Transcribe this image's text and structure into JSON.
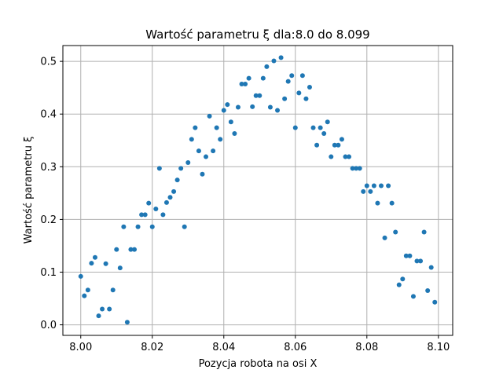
{
  "chart_data": {
    "type": "scatter",
    "title": "Wartość parametru ξ dla:8.0 do 8.099",
    "xlabel": "Pozycja robota na osi X",
    "ylabel": "Wartość parametru ξ",
    "xlim": [
      7.995,
      8.104
    ],
    "ylim": [
      -0.02,
      0.53
    ],
    "xticks": [
      8.0,
      8.02,
      8.04,
      8.06,
      8.08,
      8.1
    ],
    "xtick_labels": [
      "8.00",
      "8.02",
      "8.04",
      "8.06",
      "8.08",
      "8.10"
    ],
    "yticks": [
      0.0,
      0.1,
      0.2,
      0.3,
      0.4,
      0.5
    ],
    "ytick_labels": [
      "0.0",
      "0.1",
      "0.2",
      "0.3",
      "0.4",
      "0.5"
    ],
    "grid": true,
    "marker_color": "#1f77b4",
    "series": [
      {
        "x": [
          8.0,
          8.001,
          8.002,
          8.003,
          8.004,
          8.005,
          8.006,
          8.007,
          8.008,
          8.009,
          8.01,
          8.011,
          8.012,
          8.013,
          8.014,
          8.015,
          8.016,
          8.017,
          8.018,
          8.019,
          8.02,
          8.021,
          8.022,
          8.023,
          8.024,
          8.025,
          8.026,
          8.027,
          8.028,
          8.029,
          8.03,
          8.031,
          8.032,
          8.033,
          8.034,
          8.035,
          8.036,
          8.037,
          8.038,
          8.039,
          8.04,
          8.041,
          8.042,
          8.043,
          8.044,
          8.045,
          8.046,
          8.047,
          8.048,
          8.049,
          8.05,
          8.051,
          8.052,
          8.053,
          8.054,
          8.055,
          8.056,
          8.057,
          8.058,
          8.059,
          8.06,
          8.061,
          8.062,
          8.063,
          8.064,
          8.065,
          8.066,
          8.067,
          8.068,
          8.069,
          8.07,
          8.071,
          8.072,
          8.073,
          8.074,
          8.075,
          8.076,
          8.077,
          8.078,
          8.079,
          8.08,
          8.081,
          8.082,
          8.083,
          8.084,
          8.085,
          8.086,
          8.087,
          8.088,
          8.089,
          8.09,
          8.091,
          8.092,
          8.093,
          8.094,
          8.095,
          8.096,
          8.097,
          8.098,
          8.099
        ],
        "y": [
          0.092,
          0.055,
          0.066,
          0.117,
          0.128,
          0.017,
          0.03,
          0.116,
          0.03,
          0.066,
          0.143,
          0.108,
          0.186,
          0.005,
          0.143,
          0.143,
          0.186,
          0.209,
          0.209,
          0.231,
          0.186,
          0.22,
          0.297,
          0.209,
          0.232,
          0.242,
          0.253,
          0.275,
          0.297,
          0.186,
          0.308,
          0.352,
          0.374,
          0.33,
          0.286,
          0.319,
          0.396,
          0.33,
          0.374,
          0.352,
          0.407,
          0.418,
          0.385,
          0.363,
          0.413,
          0.457,
          0.457,
          0.468,
          0.414,
          0.435,
          0.435,
          0.468,
          0.49,
          0.413,
          0.501,
          0.407,
          0.507,
          0.429,
          0.462,
          0.473,
          0.374,
          0.44,
          0.473,
          0.429,
          0.451,
          0.374,
          0.341,
          0.374,
          0.363,
          0.385,
          0.319,
          0.341,
          0.341,
          0.352,
          0.319,
          0.319,
          0.297,
          0.297,
          0.297,
          0.253,
          0.264,
          0.253,
          0.264,
          0.231,
          0.264,
          0.165,
          0.264,
          0.231,
          0.176,
          0.076,
          0.087,
          0.131,
          0.131,
          0.054,
          0.121,
          0.121,
          0.176,
          0.065,
          0.109,
          0.043
        ]
      }
    ]
  }
}
